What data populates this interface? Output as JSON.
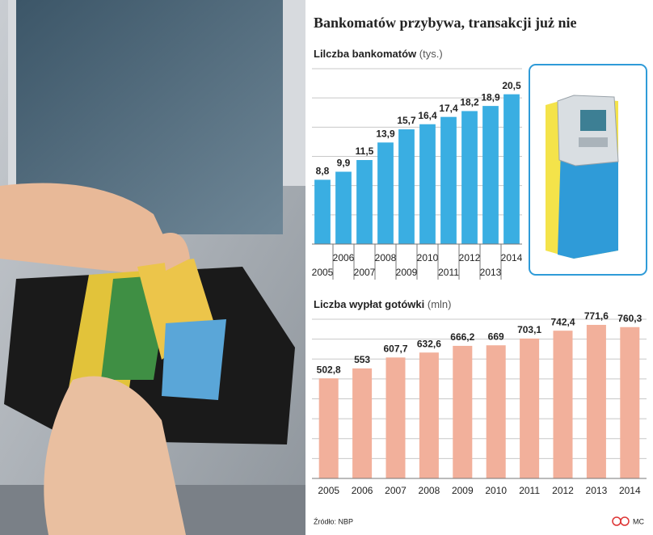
{
  "title": "Bankomatów przybywa, transakcji już nie",
  "source": "Źródło: NBP",
  "author": "MC",
  "chart_data": [
    {
      "type": "bar",
      "title": "Lilczba bankomatów",
      "unit": "(tys.)",
      "categories": [
        "2005",
        "2006",
        "2007",
        "2008",
        "2009",
        "2010",
        "2011",
        "2012",
        "2013",
        "2014"
      ],
      "values": [
        8.8,
        9.9,
        11.5,
        13.9,
        15.7,
        16.4,
        17.4,
        18.2,
        18.9,
        20.5
      ],
      "value_labels": [
        "8,8",
        "9,9",
        "11,5",
        "13,9",
        "15,7",
        "16,4",
        "17,4",
        "18,2",
        "18,9",
        "20,5"
      ],
      "color": "#3aaee2",
      "ylim": [
        0,
        24
      ],
      "yticks": [
        0,
        4,
        8,
        12,
        16,
        20,
        24
      ],
      "grid": true,
      "ytick_labels": false,
      "staggered_labels": true
    },
    {
      "type": "bar",
      "title": "Liczba wypłat gotówki",
      "unit": "(mln)",
      "categories": [
        "2005",
        "2006",
        "2007",
        "2008",
        "2009",
        "2010",
        "2011",
        "2012",
        "2013",
        "2014"
      ],
      "values": [
        502.8,
        553,
        607.7,
        632.6,
        666.2,
        669,
        703.1,
        742.4,
        771.6,
        760.3
      ],
      "value_labels": [
        "502,8",
        "553",
        "607,7",
        "632,6",
        "666,2",
        "669",
        "703,1",
        "742,4",
        "771,6",
        "760,3"
      ],
      "color": "#f2b09b",
      "ylim": [
        0,
        800
      ],
      "yticks": [
        0,
        100,
        200,
        300,
        400,
        500,
        600,
        700,
        800
      ],
      "grid": true,
      "ytick_labels": false,
      "staggered_labels": false
    }
  ]
}
